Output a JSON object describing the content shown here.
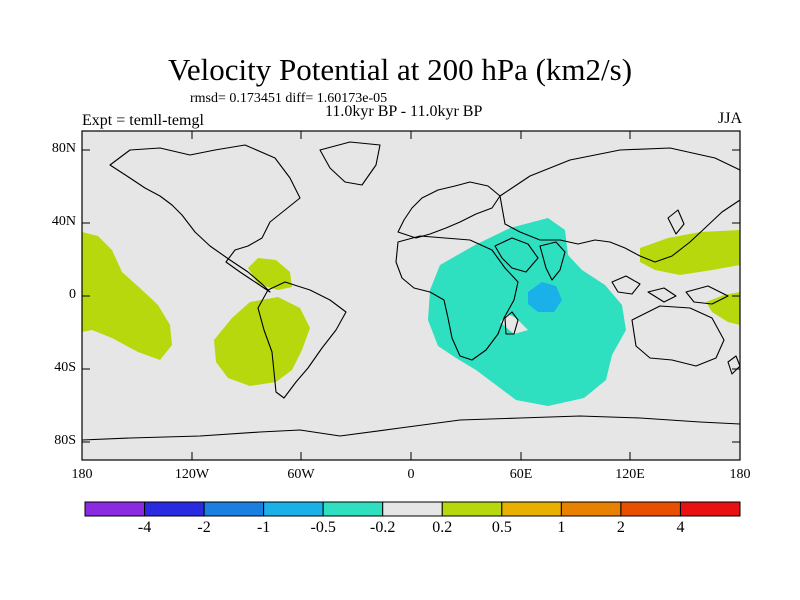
{
  "title": "Velocity Potential at 200 hPa (km2/s)",
  "stats": "rmsd= 0.173451 diff= 1.60173e-05",
  "expt_label": "Expt = temll-temgl",
  "period": "11.0kyr BP - 11.0kyr BP",
  "season": "JJA",
  "latitude_ticks": [
    "80N",
    "40N",
    "0",
    "40S",
    "80S"
  ],
  "longitude_ticks": [
    "180",
    "120W",
    "60W",
    "0",
    "60E",
    "120E",
    "180"
  ],
  "colorbar": {
    "colors": [
      "#8a2be2",
      "#2a2ae0",
      "#1a7fe0",
      "#1ab0e8",
      "#2ee0c0",
      "#e6e6e6",
      "#b8d80e",
      "#e8b000",
      "#e88000",
      "#e85000",
      "#e81010"
    ],
    "labels": [
      "-4",
      "-2",
      "-1",
      "-0.5",
      "-0.2",
      "0.2",
      "0.5",
      "1",
      "2",
      "4"
    ]
  },
  "colors": {
    "background": "#e6e6e6",
    "positive": "#b8d80e",
    "negative_light": "#2ee0c0",
    "negative_mid": "#1ab0e8"
  }
}
